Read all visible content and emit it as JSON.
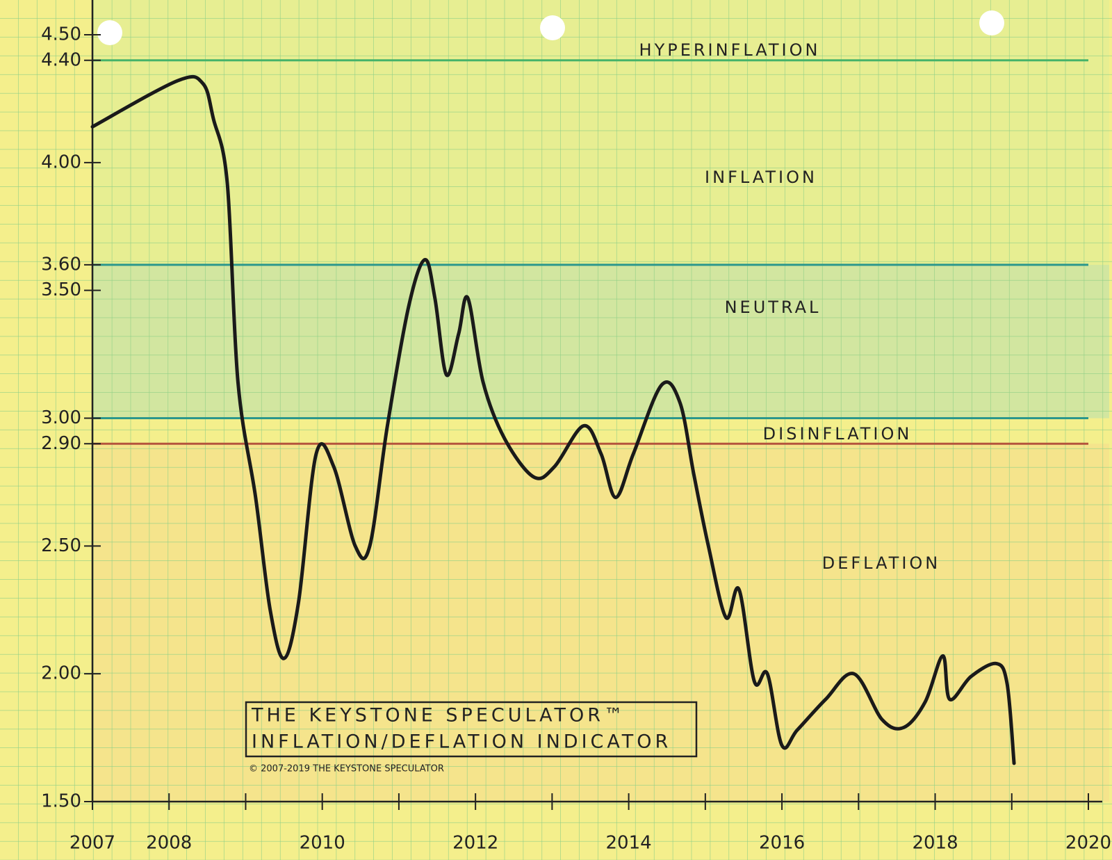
{
  "chart_data": {
    "type": "line",
    "title": [
      "THE KEYSTONE SPECULATOR™",
      "INFLATION/DEFLATION INDICATOR"
    ],
    "subtitle": "© 2007-2019 THE KEYSTONE SPECULATOR",
    "annotations": [
      "HYPERINFLATION",
      "INFLATION",
      "NEUTRAL",
      "DISINFLATION",
      "DEFLATION"
    ],
    "zone_lines": [
      {
        "value": 4.4,
        "color": "#46b36a"
      },
      {
        "value": 3.6,
        "color": "#2a978c"
      },
      {
        "value": 3.0,
        "color": "#2a978c"
      },
      {
        "value": 2.9,
        "color": "#b4543c"
      }
    ],
    "x": [
      2007.0,
      2008.11,
      2008.44,
      2008.58,
      2008.76,
      2008.9,
      2009.13,
      2009.32,
      2009.5,
      2009.69,
      2009.92,
      2010.15,
      2010.43,
      2010.62,
      2010.85,
      2011.13,
      2011.34,
      2011.47,
      2011.62,
      2011.78,
      2011.9,
      2012.1,
      2012.38,
      2012.76,
      2013.03,
      2013.41,
      2013.64,
      2013.83,
      2014.06,
      2014.43,
      2014.67,
      2014.85,
      2015.04,
      2015.27,
      2015.44,
      2015.64,
      2015.81,
      2016.0,
      2016.2,
      2016.57,
      2016.94,
      2017.31,
      2017.59,
      2017.87,
      2018.1,
      2018.19,
      2018.47,
      2018.8,
      2018.94,
      2019.03
    ],
    "series": [
      {
        "color": "#1a1a1a",
        "values": [
          4.14,
          4.32,
          4.31,
          4.17,
          3.92,
          3.14,
          2.69,
          2.25,
          2.06,
          2.28,
          2.86,
          2.81,
          2.5,
          2.5,
          2.97,
          3.44,
          3.62,
          3.47,
          3.17,
          3.33,
          3.47,
          3.14,
          2.92,
          2.77,
          2.81,
          2.97,
          2.86,
          2.69,
          2.86,
          3.13,
          3.06,
          2.78,
          2.5,
          2.22,
          2.33,
          1.97,
          2.0,
          1.72,
          1.78,
          1.9,
          2.0,
          1.82,
          1.79,
          1.89,
          2.07,
          1.9,
          1.99,
          2.04,
          1.96,
          1.65
        ]
      }
    ],
    "xlim": [
      2007,
      2020
    ],
    "xticks": [
      2007,
      2008,
      2010,
      2012,
      2014,
      2016,
      2018,
      2020
    ],
    "xminorticks": [
      2009,
      2011,
      2013,
      2015,
      2017,
      2019
    ],
    "ylim": [
      1.5,
      4.5
    ],
    "yticks": [
      {
        "value": 1.5,
        "label": "1.50"
      },
      {
        "value": 2,
        "label": "2.00"
      },
      {
        "value": 2.5,
        "label": "2.50"
      },
      {
        "value": 2.9,
        "label": "2.90"
      },
      {
        "value": 3,
        "label": "3.00"
      },
      {
        "value": 3.5,
        "label": "3.50"
      },
      {
        "value": 3.6,
        "label": "3.60"
      },
      {
        "value": 4,
        "label": "4.00"
      },
      {
        "value": 4.4,
        "label": "4.40"
      },
      {
        "value": 4.5,
        "label": "4.50"
      }
    ]
  }
}
